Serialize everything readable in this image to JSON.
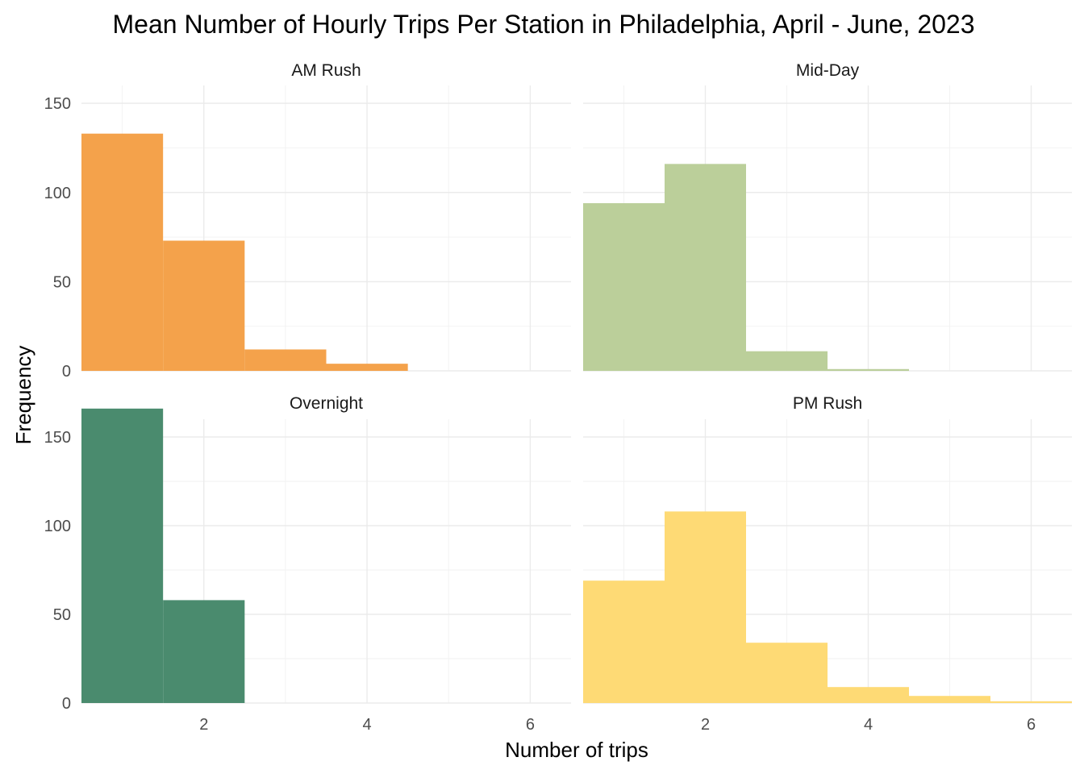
{
  "chart_data": {
    "type": "bar",
    "title": "Mean Number of Hourly Trips Per Station in Philadelphia, April - June, 2023",
    "xlabel": "Number of trips",
    "ylabel": "Frequency",
    "xlim": [
      0.5,
      6.5
    ],
    "ylim": [
      0,
      160
    ],
    "x_ticks": [
      2,
      4,
      6
    ],
    "y_ticks": [
      0,
      50,
      100,
      150
    ],
    "bin_width": 1,
    "grid": true,
    "facets": [
      {
        "name": "AM Rush",
        "color": "#F4A24B",
        "bins": [
          1,
          2,
          3,
          4,
          5,
          6
        ],
        "values": [
          133,
          73,
          12,
          4,
          0,
          0
        ]
      },
      {
        "name": "Mid-Day",
        "color": "#BBCF9A",
        "bins": [
          1,
          2,
          3,
          4,
          5,
          6
        ],
        "values": [
          94,
          116,
          11,
          1,
          0,
          0
        ]
      },
      {
        "name": "Overnight",
        "color": "#4A8B6E",
        "bins": [
          1,
          2,
          3,
          4,
          5,
          6
        ],
        "values": [
          166,
          58,
          0,
          0,
          0,
          0
        ]
      },
      {
        "name": "PM Rush",
        "color": "#FEDA75",
        "bins": [
          1,
          2,
          3,
          4,
          5,
          6
        ],
        "values": [
          69,
          108,
          34,
          9,
          4,
          1
        ]
      }
    ]
  }
}
